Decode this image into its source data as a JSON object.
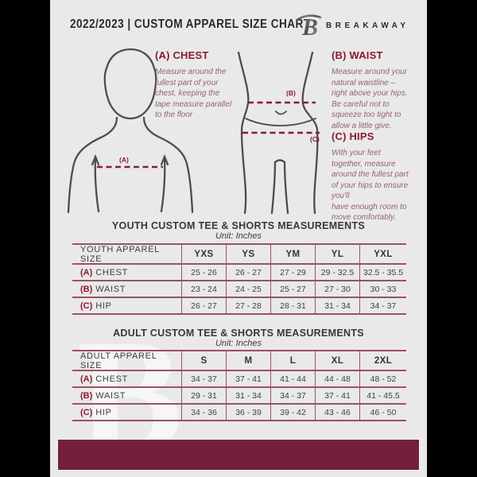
{
  "colors": {
    "outside_bg": "#000000",
    "document_bg": "#e9e9e9",
    "maroon_accent": "#8a1b31",
    "table_line": "#9d5065",
    "footer_band": "#74203a"
  },
  "header": {
    "title": "2022/2023  |  CUSTOM APPAREL SIZE CHART",
    "brand": "BREAKAWAY",
    "logo_icon": "breakaway-b-logo"
  },
  "diagram": {
    "labels": {
      "a": "(A)",
      "b": "(B)",
      "c": "(C)"
    }
  },
  "instructions": [
    {
      "heading": "(A) CHEST",
      "body": "Measure around the\nfullest part of your\nchest, keeping the\ntape measure parallel\nto the floor"
    },
    {
      "heading": "(B) WAIST",
      "body": "Measure around your\nnatural waistline –\nright above your hips.\nBe careful not to\nsqueeze too tight to\nallow a little give."
    },
    {
      "heading": "(C) HIPS",
      "body": "With your feet\ntogether, measure\naround the fullest part\nof your hips to ensure\nyou'll\nhave enough room to\nmove comfortably."
    }
  ],
  "tables": [
    {
      "title": "YOUTH CUSTOM TEE & SHORTS MEASUREMENTS",
      "unit": "Unit: Inches",
      "header": {
        "label": "YOUTH APPAREL SIZE",
        "sizes": [
          "YXS",
          "YS",
          "YM",
          "YL",
          "YXL"
        ]
      },
      "rows": [
        {
          "key": "(A)",
          "label": "CHEST",
          "values": [
            "25 - 26",
            "26 - 27",
            "27 - 29",
            "29 - 32.5",
            "32.5 - 35.5"
          ]
        },
        {
          "key": "(B)",
          "label": "WAIST",
          "values": [
            "23 - 24",
            "24 - 25",
            "25 - 27",
            "27 - 30",
            "30 - 33"
          ]
        },
        {
          "key": "(C)",
          "label": "HIP",
          "values": [
            "26 - 27",
            "27 - 28",
            "28 - 31",
            "31 - 34",
            "34 - 37"
          ]
        }
      ]
    },
    {
      "title": "ADULT CUSTOM TEE & SHORTS MEASUREMENTS",
      "unit": "Unit: Inches",
      "header": {
        "label": "ADULT APPAREL SIZE",
        "sizes": [
          "S",
          "M",
          "L",
          "XL",
          "2XL"
        ]
      },
      "rows": [
        {
          "key": "(A)",
          "label": "CHEST",
          "values": [
            "34 - 37",
            "37 - 41",
            "41 - 44",
            "44 - 48",
            "48 - 52"
          ]
        },
        {
          "key": "(B)",
          "label": "WAIST",
          "values": [
            "29 - 31",
            "31 - 34",
            "34 - 37",
            "37 - 41",
            "41 - 45.5"
          ]
        },
        {
          "key": "(C)",
          "label": "HIP",
          "values": [
            "34 - 36",
            "36 - 39",
            "39 - 42",
            "43 - 46",
            "46 - 50"
          ]
        }
      ]
    }
  ],
  "watermark": {
    "letter": "B"
  }
}
